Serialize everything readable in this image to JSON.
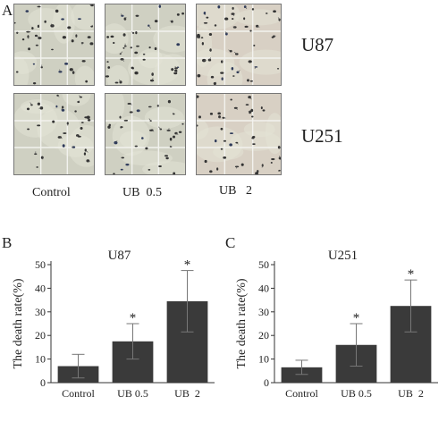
{
  "panel_a": {
    "letter": "A",
    "row_labels": [
      "U87",
      "U251"
    ],
    "column_labels": [
      "Control",
      "UB  0.5",
      "UB   2"
    ]
  },
  "chart_data": [
    {
      "panel": "B",
      "type": "bar",
      "title": "U87",
      "ylabel": "The death rate(%)",
      "categories": [
        "Control",
        "UB 0.5",
        "UB  2"
      ],
      "values": [
        7,
        17.5,
        34.5
      ],
      "errors": [
        5,
        7.5,
        13
      ],
      "significance": [
        "",
        "*",
        "*"
      ],
      "ylim": [
        0,
        50
      ],
      "yticks": [
        0,
        10,
        20,
        30,
        40,
        50
      ],
      "bar_color": "#3a3a3a"
    },
    {
      "panel": "C",
      "type": "bar",
      "title": "U251",
      "ylabel": "The death rate(%)",
      "categories": [
        "Control",
        "UB 0.5",
        "UB  2"
      ],
      "values": [
        6.5,
        16,
        32.5
      ],
      "errors": [
        3,
        9,
        11
      ],
      "significance": [
        "",
        "*",
        "*"
      ],
      "ylim": [
        0,
        50
      ],
      "yticks": [
        0,
        10,
        20,
        30,
        40,
        50
      ],
      "bar_color": "#3a3a3a"
    }
  ]
}
